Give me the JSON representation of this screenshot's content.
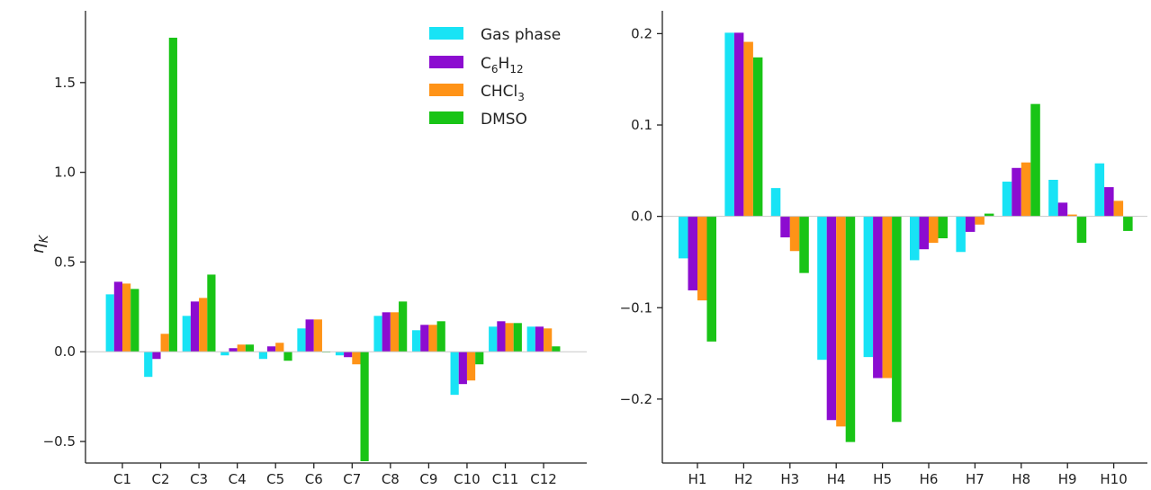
{
  "chart_data": [
    {
      "type": "bar",
      "title": "",
      "xlabel": "",
      "ylabel": "η_K",
      "ylim": [
        -0.62,
        1.9
      ],
      "yticks": [
        -0.5,
        0.0,
        0.5,
        1.0,
        1.5
      ],
      "ytick_labels": [
        "−0.5",
        "0.0",
        "0.5",
        "1.0",
        "1.5"
      ],
      "categories": [
        "C1",
        "C2",
        "C3",
        "C4",
        "C5",
        "C6",
        "C7",
        "C8",
        "C9",
        "C10",
        "C11",
        "C12"
      ],
      "series": [
        {
          "name": "Gas phase",
          "color": "#18e3f5",
          "values": [
            0.32,
            -0.14,
            0.2,
            -0.02,
            -0.04,
            0.13,
            -0.02,
            0.2,
            0.12,
            -0.24,
            0.14,
            0.14
          ]
        },
        {
          "name": "C6H12",
          "color": "#8c0cd0",
          "values": [
            0.39,
            -0.04,
            0.28,
            0.02,
            0.03,
            0.18,
            -0.03,
            0.22,
            0.15,
            -0.18,
            0.17,
            0.14
          ]
        },
        {
          "name": "CHCl3",
          "color": "#ff9317",
          "values": [
            0.38,
            0.1,
            0.3,
            0.04,
            0.05,
            0.18,
            -0.07,
            0.22,
            0.15,
            -0.16,
            0.16,
            0.13
          ]
        },
        {
          "name": "DMSO",
          "color": "#19c416",
          "values": [
            0.35,
            1.75,
            0.43,
            0.04,
            -0.05,
            0.0,
            -0.61,
            0.28,
            0.17,
            -0.07,
            0.16,
            0.03
          ]
        }
      ],
      "legend_position": "top-right",
      "grid": false
    },
    {
      "type": "bar",
      "title": "",
      "xlabel": "",
      "ylabel": "",
      "ylim": [
        -0.27,
        0.225
      ],
      "yticks": [
        -0.2,
        -0.1,
        0.0,
        0.1,
        0.2
      ],
      "ytick_labels": [
        "−0.2",
        "−0.1",
        "0.0",
        "0.1",
        "0.2"
      ],
      "categories": [
        "H1",
        "H2",
        "H3",
        "H4",
        "H5",
        "H6",
        "H7",
        "H8",
        "H9",
        "H10"
      ],
      "series": [
        {
          "name": "Gas phase",
          "color": "#18e3f5",
          "values": [
            -0.046,
            0.201,
            0.031,
            -0.157,
            -0.154,
            -0.048,
            -0.039,
            0.038,
            0.04,
            0.058
          ]
        },
        {
          "name": "C6H12",
          "color": "#8c0cd0",
          "values": [
            -0.081,
            0.201,
            -0.023,
            -0.223,
            -0.177,
            -0.036,
            -0.017,
            0.053,
            0.015,
            0.032
          ]
        },
        {
          "name": "CHCl3",
          "color": "#ff9317",
          "values": [
            -0.092,
            0.191,
            -0.038,
            -0.23,
            -0.177,
            -0.029,
            -0.009,
            0.059,
            0.002,
            0.017
          ]
        },
        {
          "name": "DMSO",
          "color": "#19c416",
          "values": [
            -0.137,
            0.174,
            -0.062,
            -0.247,
            -0.225,
            -0.024,
            0.003,
            0.123,
            -0.029,
            -0.016
          ]
        }
      ],
      "legend_position": "none",
      "grid": false
    }
  ],
  "legend": {
    "entries": [
      {
        "label": "Gas phase",
        "color": "#18e3f5"
      },
      {
        "label": "C6H12",
        "color": "#8c0cd0"
      },
      {
        "label": "CHCl3",
        "color": "#ff9317"
      },
      {
        "label": "DMSO",
        "color": "#19c416"
      }
    ]
  },
  "ylabel_text": {
    "base": "η",
    "sub": "K"
  }
}
